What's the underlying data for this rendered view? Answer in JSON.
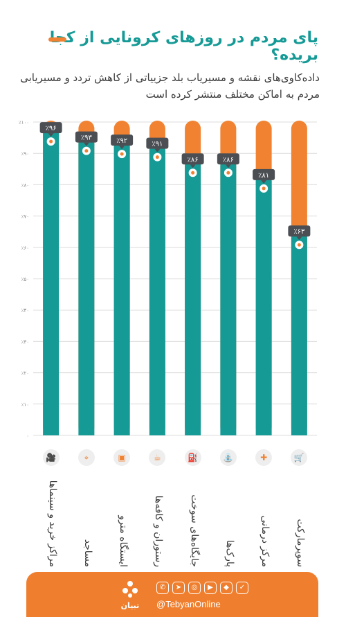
{
  "title": "پای مردم در روزهای کرونایی از کجا بریده؟",
  "subtitle": "داده‌کاوی‌های نقشه و مسیریاب بلد جزییاتی از کاهش تردد و مسیریابی مردم به اماکن مختلف منتشر کرده است",
  "colors": {
    "teal": "#169a96",
    "orange": "#f08232",
    "label_bg": "#4b4f54"
  },
  "chart_data": {
    "type": "bar",
    "categories": [
      "مراکز خرید و سینماها",
      "مساجد",
      "ایستگاه مترو",
      "رستوران و کافه‌ها",
      "جایگاه‌های سوخت",
      "پارک‌ها",
      "مرکز درمانی",
      "سوپرمارکت"
    ],
    "values": [
      96,
      93,
      92,
      91,
      86,
      86,
      81,
      63
    ],
    "value_labels": [
      "٪۹۶",
      "٪۹۳",
      "٪۹۲",
      "٪۹۱",
      "٪۸۶",
      "٪۸۶",
      "٪۸۱",
      "٪۶۳"
    ],
    "ylim": [
      0,
      100
    ],
    "yticks": [
      0,
      10,
      20,
      30,
      40,
      50,
      60,
      70,
      80,
      90,
      100
    ],
    "ytick_labels": [
      "۰",
      "٪۱۰",
      "٪۲۰",
      "٪۳۰",
      "٪۴۰",
      "٪۵۰",
      "٪۶۰",
      "٪۷۰",
      "٪۸۰",
      "٪۹۰",
      "٪۱۰۰"
    ],
    "grid": true
  },
  "icons": [
    "film-camera-icon",
    "location-pin-icon",
    "metro-train-icon",
    "coffee-cup-icon",
    "fuel-pump-icon",
    "playground-slide-icon",
    "medical-cross-icon",
    "shopping-cart-icon"
  ],
  "footer": {
    "logo_text": "تبیان",
    "handle": "@TebyanOnline",
    "social_icons": [
      "whatsapp-icon",
      "telegram-icon",
      "instagram-icon",
      "aparat-icon",
      "soroush-icon",
      "bale-icon"
    ]
  }
}
